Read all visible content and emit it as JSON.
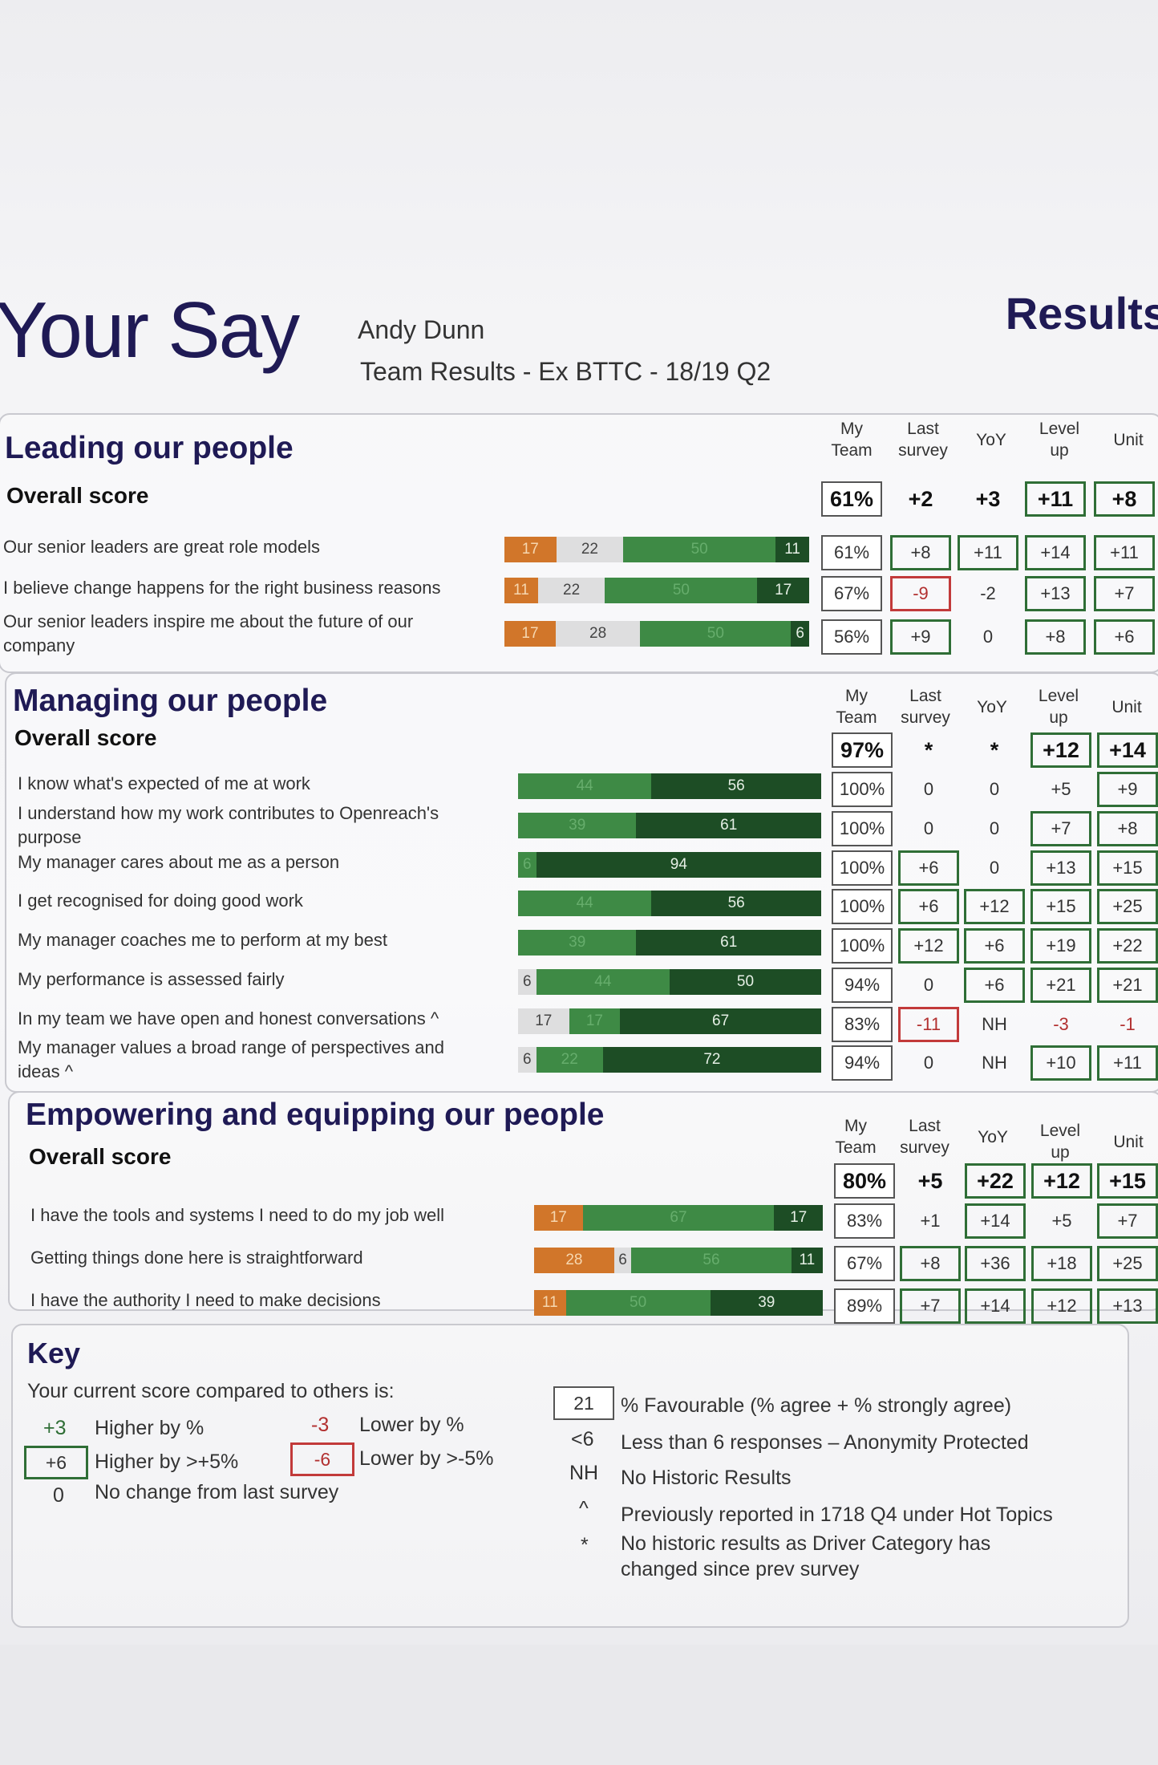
{
  "header": {
    "title": "Your Say",
    "name": "Andy Dunn",
    "subtitle": "Team Results -  Ex BTTC - 18/19 Q2",
    "results": "Results"
  },
  "column_headers": {
    "my_team": [
      "My",
      "Team"
    ],
    "last_survey": [
      "Last",
      "survey"
    ],
    "yoy": "YoY",
    "level_up": [
      "Level",
      "up"
    ],
    "unit": "Unit"
  },
  "sections": [
    {
      "title": "Leading our people",
      "overall_label": "Overall score",
      "overall": {
        "my_team": "61%",
        "last_survey": "+2",
        "yoy": "+3",
        "level_up": "+11",
        "unit": "+8"
      },
      "rows": [
        {
          "label": "Our senior leaders are great role models",
          "bar": [
            {
              "kind": "orange",
              "value": 17
            },
            {
              "kind": "grey",
              "value": 22
            },
            {
              "kind": "mid",
              "value": 50
            },
            {
              "kind": "dark",
              "value": 11
            }
          ],
          "cells": [
            "61%",
            "+8",
            "+11",
            "+14",
            "+11"
          ]
        },
        {
          "label": "I believe change happens for the right business reasons",
          "bar": [
            {
              "kind": "orange",
              "value": 11
            },
            {
              "kind": "grey",
              "value": 22
            },
            {
              "kind": "mid",
              "value": 50
            },
            {
              "kind": "dark",
              "value": 17
            }
          ],
          "cells": [
            "67%",
            "-9",
            "-2",
            "+13",
            "+7"
          ]
        },
        {
          "label": "Our senior leaders inspire me about the future of our company",
          "bar": [
            {
              "kind": "orange",
              "value": 17
            },
            {
              "kind": "grey",
              "value": 28
            },
            {
              "kind": "mid",
              "value": 50
            },
            {
              "kind": "dark",
              "value": 6
            }
          ],
          "cells": [
            "56%",
            "+9",
            "0",
            "+8",
            "+6"
          ]
        }
      ]
    },
    {
      "title": "Managing our people",
      "overall_label": "Overall score",
      "overall": {
        "my_team": "97%",
        "last_survey": "*",
        "yoy": "*",
        "level_up": "+12",
        "unit": "+14"
      },
      "rows": [
        {
          "label": "I know what's expected of me at work",
          "bar": [
            {
              "kind": "mid",
              "value": 44
            },
            {
              "kind": "dark",
              "value": 56
            }
          ],
          "cells": [
            "100%",
            "0",
            "0",
            "+5",
            "+9"
          ]
        },
        {
          "label": "I understand how my work contributes to Openreach's purpose",
          "bar": [
            {
              "kind": "mid",
              "value": 39
            },
            {
              "kind": "dark",
              "value": 61
            }
          ],
          "cells": [
            "100%",
            "0",
            "0",
            "+7",
            "+8"
          ]
        },
        {
          "label": "My manager cares about me as a person",
          "bar": [
            {
              "kind": "mid",
              "value": 6
            },
            {
              "kind": "dark",
              "value": 94
            }
          ],
          "cells": [
            "100%",
            "+6",
            "0",
            "+13",
            "+15"
          ]
        },
        {
          "label": "I get recognised for doing good work",
          "bar": [
            {
              "kind": "mid",
              "value": 44
            },
            {
              "kind": "dark",
              "value": 56
            }
          ],
          "cells": [
            "100%",
            "+6",
            "+12",
            "+15",
            "+25"
          ]
        },
        {
          "label": "My manager coaches me to perform at my best",
          "bar": [
            {
              "kind": "mid",
              "value": 39
            },
            {
              "kind": "dark",
              "value": 61
            }
          ],
          "cells": [
            "100%",
            "+12",
            "+6",
            "+19",
            "+22"
          ]
        },
        {
          "label": "My performance is assessed fairly",
          "bar": [
            {
              "kind": "grey",
              "value": 6
            },
            {
              "kind": "mid",
              "value": 44
            },
            {
              "kind": "dark",
              "value": 50
            }
          ],
          "cells": [
            "94%",
            "0",
            "+6",
            "+21",
            "+21"
          ]
        },
        {
          "label": "In my team we have open and honest conversations ^",
          "bar": [
            {
              "kind": "grey",
              "value": 17
            },
            {
              "kind": "mid",
              "value": 17
            },
            {
              "kind": "dark",
              "value": 67
            }
          ],
          "cells": [
            "83%",
            "-11",
            "NH",
            "-3",
            "-1"
          ]
        },
        {
          "label": "My manager values a broad range of perspectives and ideas ^",
          "bar": [
            {
              "kind": "grey",
              "value": 6
            },
            {
              "kind": "mid",
              "value": 22
            },
            {
              "kind": "dark",
              "value": 72
            }
          ],
          "cells": [
            "94%",
            "0",
            "NH",
            "+10",
            "+11"
          ]
        }
      ]
    },
    {
      "title": "Empowering and equipping our people",
      "overall_label": "Overall score",
      "overall": {
        "my_team": "80%",
        "last_survey": "+5",
        "yoy": "+22",
        "level_up": "+12",
        "unit": "+15"
      },
      "rows": [
        {
          "label": "I have the tools and systems I need to do my job well",
          "bar": [
            {
              "kind": "orange",
              "value": 17
            },
            {
              "kind": "mid",
              "value": 67
            },
            {
              "kind": "dark",
              "value": 17
            }
          ],
          "cells": [
            "83%",
            "+1",
            "+14",
            "+5",
            "+7"
          ]
        },
        {
          "label": "Getting things done here is straightforward",
          "bar": [
            {
              "kind": "orange",
              "value": 28
            },
            {
              "kind": "grey",
              "value": 6
            },
            {
              "kind": "mid",
              "value": 56
            },
            {
              "kind": "dark",
              "value": 11
            }
          ],
          "cells": [
            "67%",
            "+8",
            "+36",
            "+18",
            "+25"
          ]
        },
        {
          "label": "I have the authority I need to make decisions",
          "bar": [
            {
              "kind": "orange",
              "value": 11
            },
            {
              "kind": "mid",
              "value": 50
            },
            {
              "kind": "dark",
              "value": 39
            }
          ],
          "cells": [
            "89%",
            "+7",
            "+14",
            "+12",
            "+13"
          ]
        }
      ]
    }
  ],
  "key": {
    "title": "Key",
    "intro": "Your current score compared to others is:",
    "higher": {
      "sample": "+3",
      "text": "Higher by %"
    },
    "lower": {
      "sample": "-3",
      "text": "Lower by %"
    },
    "higher_big": {
      "sample": "+6",
      "text": "Higher by >+5%"
    },
    "lower_big": {
      "sample": "-6",
      "text": "Lower by >-5%"
    },
    "no_change": {
      "sample": "0",
      "text": "No change from last survey"
    },
    "favourable": {
      "sample": "21",
      "text": "% Favourable (% agree + % strongly agree)"
    },
    "lt6": {
      "sample": "<6",
      "text": "Less than 6 responses – Anonymity Protected"
    },
    "nh": {
      "sample": "NH",
      "text": "No Historic Results"
    },
    "caret": {
      "sample": "^",
      "text": "Previously reported in 1718 Q4 under Hot Topics"
    },
    "star": {
      "sample": "*",
      "text": "No historic results as Driver Category has changed since prev survey"
    }
  },
  "cell_styles": {
    "sections": [
      {
        "overall": [
          "boxed bold",
          "bold",
          "bold",
          "green bold",
          "green bold"
        ],
        "rows": [
          [
            "boxed",
            "green",
            "green",
            "green",
            "green"
          ],
          [
            "boxed",
            "red",
            "",
            "green",
            "green"
          ],
          [
            "boxed",
            "green",
            "",
            "green",
            "green"
          ]
        ]
      },
      {
        "overall": [
          "boxed bold",
          "bold",
          "bold",
          "green bold",
          "green bold"
        ],
        "rows": [
          [
            "boxed",
            "",
            "",
            "",
            "green"
          ],
          [
            "boxed",
            "",
            "",
            "green",
            "green"
          ],
          [
            "boxed",
            "green",
            "",
            "green",
            "green"
          ],
          [
            "boxed",
            "green",
            "green",
            "green",
            "green"
          ],
          [
            "boxed",
            "green",
            "green",
            "green",
            "green"
          ],
          [
            "boxed",
            "",
            "green",
            "green",
            "green"
          ],
          [
            "boxed",
            "red",
            "",
            "redtxt",
            "redtxt"
          ],
          [
            "boxed",
            "",
            "",
            "green",
            "green"
          ]
        ]
      },
      {
        "overall": [
          "boxed bold",
          "bold",
          "green bold",
          "green bold",
          "green bold"
        ],
        "rows": [
          [
            "boxed",
            "",
            "green",
            "",
            "green"
          ],
          [
            "boxed",
            "green",
            "green",
            "green",
            "green"
          ],
          [
            "boxed",
            "green",
            "green",
            "green",
            "green"
          ]
        ]
      }
    ]
  }
}
